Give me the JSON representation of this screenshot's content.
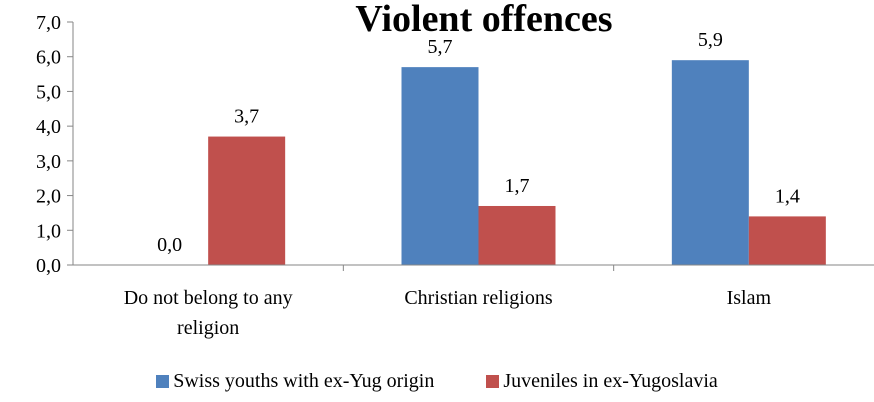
{
  "chart_data": {
    "type": "bar",
    "title": "Violent offences",
    "categories": [
      "Do not belong to any religion",
      "Christian religions",
      "Islam"
    ],
    "category_lines": [
      [
        "Do not belong to any",
        "religion"
      ],
      [
        "Christian religions"
      ],
      [
        "Islam"
      ]
    ],
    "series": [
      {
        "name": "Swiss youths with ex-Yug origin",
        "values": [
          0.0,
          5.7,
          5.9
        ],
        "labels": [
          "",
          "5,7",
          "5,9"
        ],
        "color": "#4F81BD"
      },
      {
        "name": "Juveniles in ex-Yugoslavia",
        "values": [
          3.7,
          1.7,
          1.4
        ],
        "labels": [
          "3,7",
          "1,7",
          "1,4"
        ],
        "color": "#C0504D"
      }
    ],
    "extra_labels": [
      {
        "text": "0,0",
        "category": 0
      }
    ],
    "ylim": [
      0,
      7
    ],
    "yticks": [
      "0,0",
      "1,0",
      "2,0",
      "3,0",
      "4,0",
      "5,0",
      "6,0",
      "7,0"
    ],
    "xlabel": "",
    "ylabel": "",
    "grid": false,
    "legend": "bottom"
  }
}
